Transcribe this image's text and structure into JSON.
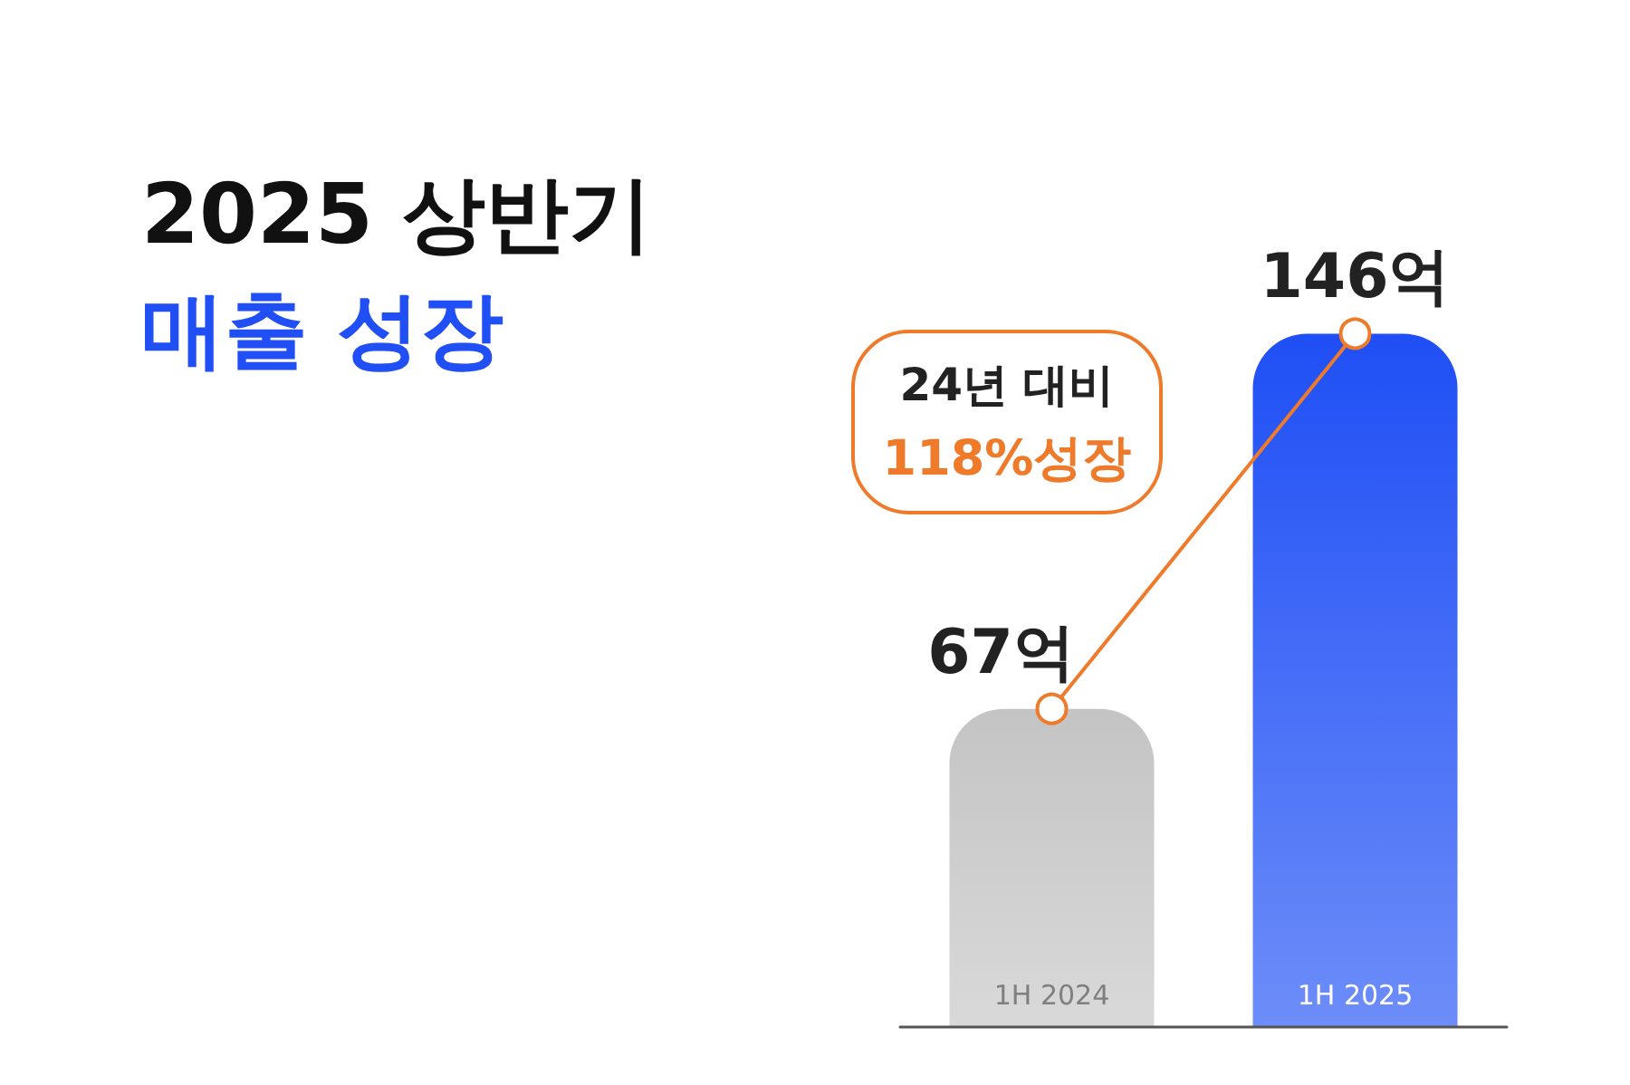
{
  "chart_data": {
    "type": "bar",
    "title": "2025 상반기",
    "subtitle": "매출 성장",
    "categories": [
      "1H 2024",
      "1H 2025"
    ],
    "series": [
      {
        "colors": [
          "#c4c4c4",
          "#1f4ff5"
        ],
        "values": [
          67,
          146
        ],
        "value_labels": [
          "67억",
          "146억"
        ]
      },
      {
        "type": "line",
        "color": "#ee7a2a",
        "values": [
          67,
          146
        ],
        "marker": "circle"
      }
    ],
    "annotations": [
      "24년 대비",
      "118%성장"
    ]
  }
}
